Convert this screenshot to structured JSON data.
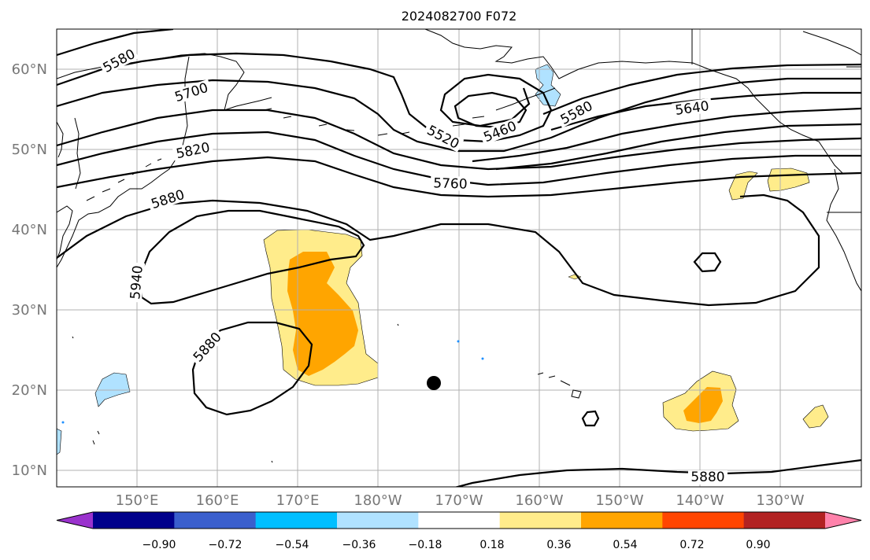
{
  "title": "2024082700 F072",
  "map": {
    "lon_labels": [
      "150°E",
      "160°E",
      "170°E",
      "180°W",
      "170°W",
      "160°W",
      "150°W",
      "140°W",
      "130°W"
    ],
    "lat_labels": [
      "60°N",
      "50°N",
      "40°N",
      "30°N",
      "20°N",
      "10°N"
    ],
    "contour_labels": [
      "5580",
      "5700",
      "5820",
      "5880",
      "5940",
      "5880",
      "5520",
      "5460",
      "5580",
      "5640",
      "5760",
      "5880"
    ]
  },
  "colorbar": {
    "ticks": [
      "−0.90",
      "−0.72",
      "−0.54",
      "−0.36",
      "−0.18",
      "0.18",
      "0.36",
      "0.54",
      "0.72",
      "0.90"
    ],
    "colors": [
      "#9a32cd",
      "#00008b",
      "#3a5fcd",
      "#00bfff",
      "#b0e2ff",
      "#ffffff",
      "#ffec8b",
      "#ffa500",
      "#ff4500",
      "#b22222",
      "#ff82ab"
    ]
  },
  "colors": {
    "positive_light": "#ffec8b",
    "positive_mid": "#ffa500",
    "negative_light": "#b0e2ff",
    "negative_mid": "#00bfff"
  }
}
